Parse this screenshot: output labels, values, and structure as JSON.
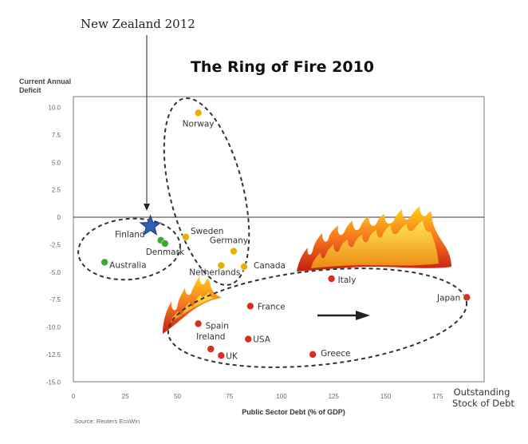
{
  "annotation": {
    "label": "New Zealand 2012"
  },
  "chart_data": {
    "type": "scatter",
    "title": "The Ring of Fire 2010",
    "xlabel": "Public Sector Debt (% of GDP)",
    "xlabel_right": [
      "Outstanding",
      "Stock of Debt"
    ],
    "ylabel": [
      "Current Annual",
      "Deficit"
    ],
    "source": "Source: Reuters EcoWin",
    "xlim": [
      0,
      190
    ],
    "ylim": [
      -15,
      12.5
    ],
    "x_ticks": [
      "0",
      "25",
      "50",
      "75",
      "100",
      "125",
      "150",
      "175"
    ],
    "y_ticks": [
      "10.0",
      "7.5",
      "5.0",
      "2.5",
      "0",
      "-2.5",
      "-5.0",
      "-7.5",
      "-10.0",
      "-12.5",
      "-15.0"
    ],
    "grid": false,
    "colors": {
      "green": "#3aaa35",
      "yellow": "#e5b100",
      "red": "#d43026",
      "star": "#2f5fb3"
    },
    "points": [
      {
        "label": "Norway",
        "x": 60,
        "y": 9.5,
        "group": "yellow"
      },
      {
        "label": "Sweden",
        "x": 54,
        "y": -1.8,
        "group": "yellow"
      },
      {
        "label": "Germany",
        "x": 77,
        "y": -3.1,
        "group": "yellow"
      },
      {
        "label": "Netherlands",
        "x": 71,
        "y": -4.4,
        "group": "yellow"
      },
      {
        "label": "Canada",
        "x": 82,
        "y": -4.5,
        "group": "yellow"
      },
      {
        "label": "Finland",
        "x": 42,
        "y": -2.1,
        "group": "green"
      },
      {
        "label": "Denmark",
        "x": 44,
        "y": -2.4,
        "group": "green"
      },
      {
        "label": "Australia",
        "x": 15,
        "y": -4.1,
        "group": "green"
      },
      {
        "label": "Italy",
        "x": 124,
        "y": -5.6,
        "group": "red"
      },
      {
        "label": "Japan",
        "x": 189,
        "y": -7.3,
        "group": "red"
      },
      {
        "label": "France",
        "x": 85,
        "y": -8.1,
        "group": "red"
      },
      {
        "label": "Spain",
        "x": 60,
        "y": -9.7,
        "group": "red"
      },
      {
        "label": "USA",
        "x": 84,
        "y": -11.1,
        "group": "red"
      },
      {
        "label": "Ireland",
        "x": 66,
        "y": -12.0,
        "group": "red"
      },
      {
        "label": "UK",
        "x": 71,
        "y": -12.6,
        "group": "red"
      },
      {
        "label": "Greece",
        "x": 115,
        "y": -12.5,
        "group": "red"
      }
    ],
    "star": {
      "x": 37,
      "y": -0.8
    }
  }
}
